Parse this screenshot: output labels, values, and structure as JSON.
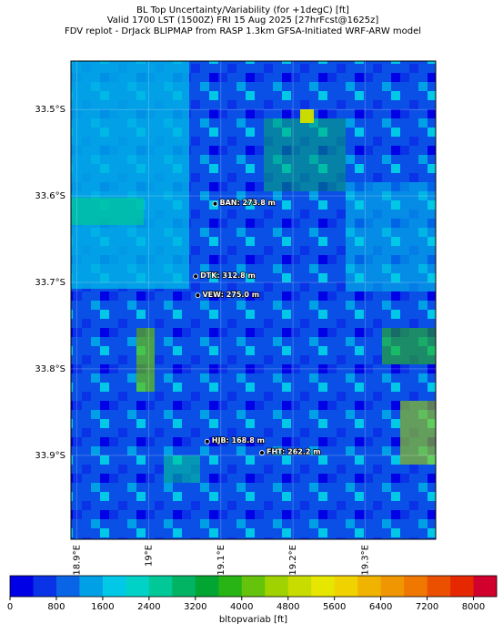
{
  "chart_data": {
    "type": "map",
    "title": [
      "BL Top Uncertainty/Variability (for +1degC) [ft]",
      "Valid 1700 LST (1500Z) FRI 15 Aug 2025 [27hrFcst@1625z]",
      "FDV replot - DrJack BLIPMAP from RASP 1.3km GFSA-Initiated WRF-ARW model"
    ],
    "xlim": [
      18.892,
      19.398
    ],
    "ylim": [
      -33.997,
      -33.444
    ],
    "xticks": [
      {
        "value": 18.9,
        "label": "18.9°E"
      },
      {
        "value": 19.0,
        "label": "19°E"
      },
      {
        "value": 19.1,
        "label": "19.1°E"
      },
      {
        "value": 19.2,
        "label": "19.2°E"
      },
      {
        "value": 19.3,
        "label": "19.3°E"
      }
    ],
    "yticks": [
      {
        "value": -33.5,
        "label": "33.5°S"
      },
      {
        "value": -33.6,
        "label": "33.6°S"
      },
      {
        "value": -33.7,
        "label": "33.7°S"
      },
      {
        "value": -33.8,
        "label": "33.8°S"
      },
      {
        "value": -33.9,
        "label": "33.9°S"
      }
    ],
    "stations": [
      {
        "lon": 19.092,
        "lat": -33.609,
        "value": 273.8,
        "label": "BAN: 273.8 m"
      },
      {
        "lon": 19.065,
        "lat": -33.693,
        "value": 312.8,
        "label": "DTK: 312.8 m"
      },
      {
        "lon": 19.068,
        "lat": -33.715,
        "value": 275.0,
        "label": "VEW: 275.0 m"
      },
      {
        "lon": 19.081,
        "lat": -33.884,
        "value": 168.8,
        "label": "HJB: 168.8 m"
      },
      {
        "lon": 19.157,
        "lat": -33.897,
        "value": 262.2,
        "label": "FHT: 262.2 m"
      }
    ],
    "colorbar": {
      "lim": [
        0,
        8400
      ],
      "ticks": [
        0,
        800,
        1600,
        2400,
        3200,
        4000,
        4800,
        5600,
        6400,
        7200,
        8000
      ],
      "colors": [
        "#0000e6",
        "#0a32e6",
        "#0a64e6",
        "#00a0e6",
        "#00c8e6",
        "#00d2c8",
        "#00c896",
        "#00b464",
        "#00a532",
        "#28b414",
        "#64c30a",
        "#a0d200",
        "#c8dc00",
        "#e6e600",
        "#f0d200",
        "#f0b400",
        "#f09600",
        "#f07800",
        "#eb5000",
        "#e62800",
        "#d2002d"
      ],
      "label": "bltopvariab [ft]"
    }
  }
}
